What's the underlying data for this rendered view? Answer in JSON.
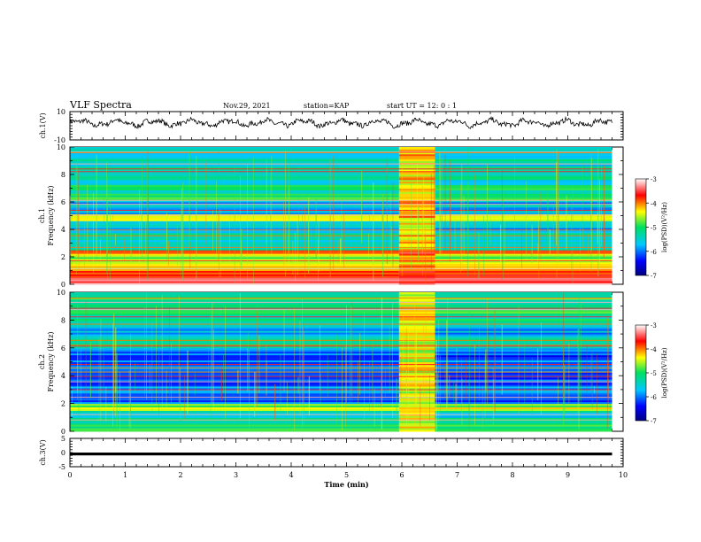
{
  "header": {
    "title": "VLF Spectra",
    "date": "Nov.29, 2021",
    "station": "station=KAP",
    "start_ut": "start UT =  12: 0 : 1"
  },
  "chart_data": [
    {
      "type": "line",
      "title": "",
      "ylabel": "ch.1(V)",
      "ylim": [
        -10,
        10
      ],
      "yticks": [
        "10",
        "-10"
      ],
      "xlim": [
        0,
        10
      ],
      "description_values": "waveform oscillating roughly between -3 and 6 V, mean ~2 V",
      "series": [
        {
          "color": "#000000",
          "x_range": [
            0,
            9.8
          ],
          "y_mean": 2,
          "y_amplitude": 3
        }
      ]
    },
    {
      "type": "heatmap",
      "title": "",
      "ylabel": "ch.1\nFrequency (kHz)",
      "ylim": [
        0,
        10
      ],
      "yticks": [
        "0",
        "2",
        "4",
        "6",
        "8",
        "10"
      ],
      "xlim": [
        0,
        10
      ],
      "data_x_range": [
        0,
        9.8
      ],
      "colorbar": {
        "label": "log(PSD)(V²/Hz)",
        "range": [
          -7,
          -3
        ],
        "ticks": [
          "-3",
          "-4",
          "-5",
          "-6",
          "-7"
        ]
      },
      "bands": [
        {
          "f": [
            0.0,
            0.5
          ],
          "level": -3.3
        },
        {
          "f": [
            0.5,
            1.0
          ],
          "level": -3.8
        },
        {
          "f": [
            1.0,
            1.3
          ],
          "level": -4.4
        },
        {
          "f": [
            1.3,
            2.2
          ],
          "level": -4.6
        },
        {
          "f": [
            2.2,
            2.5
          ],
          "level": -4.0
        },
        {
          "f": [
            2.5,
            3.0
          ],
          "level": -5.3
        },
        {
          "f": [
            3.0,
            3.8
          ],
          "level": -5.4
        },
        {
          "f": [
            3.8,
            4.6
          ],
          "level": -5.7
        },
        {
          "f": [
            4.6,
            5.1
          ],
          "level": -4.2
        },
        {
          "f": [
            5.1,
            6.1
          ],
          "level": -5.7
        },
        {
          "f": [
            6.1,
            6.6
          ],
          "level": -4.8
        },
        {
          "f": [
            6.6,
            7.4
          ],
          "level": -5.2
        },
        {
          "f": [
            7.4,
            10.0
          ],
          "level": -5.4
        }
      ],
      "burst_interval_min": [
        5.95,
        6.6
      ],
      "burst_level": -4.4
    },
    {
      "type": "heatmap",
      "title": "",
      "ylabel": "ch.2\nFrequency (kHz)",
      "ylim": [
        0,
        10
      ],
      "yticks": [
        "0",
        "2",
        "4",
        "6",
        "8",
        "10"
      ],
      "xlim": [
        0,
        10
      ],
      "data_x_range": [
        0,
        9.8
      ],
      "colorbar": {
        "label": "log(PSD)(V²/Hz)",
        "range": [
          -7,
          -3
        ],
        "ticks": [
          "-3",
          "-4",
          "-5",
          "-6",
          "-7"
        ]
      },
      "bands": [
        {
          "f": [
            0.0,
            0.5
          ],
          "level": -5.0
        },
        {
          "f": [
            0.5,
            1.5
          ],
          "level": -5.4
        },
        {
          "f": [
            1.5,
            2.0
          ],
          "level": -4.6
        },
        {
          "f": [
            2.0,
            3.4
          ],
          "level": -6.0
        },
        {
          "f": [
            3.4,
            4.2
          ],
          "level": -6.3
        },
        {
          "f": [
            4.2,
            6.0
          ],
          "level": -6.1
        },
        {
          "f": [
            6.0,
            6.6
          ],
          "level": -5.3
        },
        {
          "f": [
            6.6,
            7.6
          ],
          "level": -5.7
        },
        {
          "f": [
            7.6,
            8.4
          ],
          "level": -5.3
        },
        {
          "f": [
            8.4,
            10.0
          ],
          "level": -5.0
        }
      ],
      "burst_interval_min": [
        5.95,
        6.6
      ],
      "burst_level": -4.6
    },
    {
      "type": "line",
      "title": "",
      "ylabel": "ch.3(V)",
      "ylim": [
        -5,
        5
      ],
      "yticks": [
        "5",
        "0",
        "-5"
      ],
      "xlim": [
        0,
        10
      ],
      "xlabel": "Time (min)",
      "xticks": [
        "0",
        "1",
        "2",
        "3",
        "4",
        "5",
        "6",
        "7",
        "8",
        "9",
        "10"
      ],
      "series": [
        {
          "color": "#000000",
          "x_range": [
            0,
            9.8
          ],
          "y_min": -1.0,
          "y_max": 0.0
        }
      ]
    }
  ]
}
